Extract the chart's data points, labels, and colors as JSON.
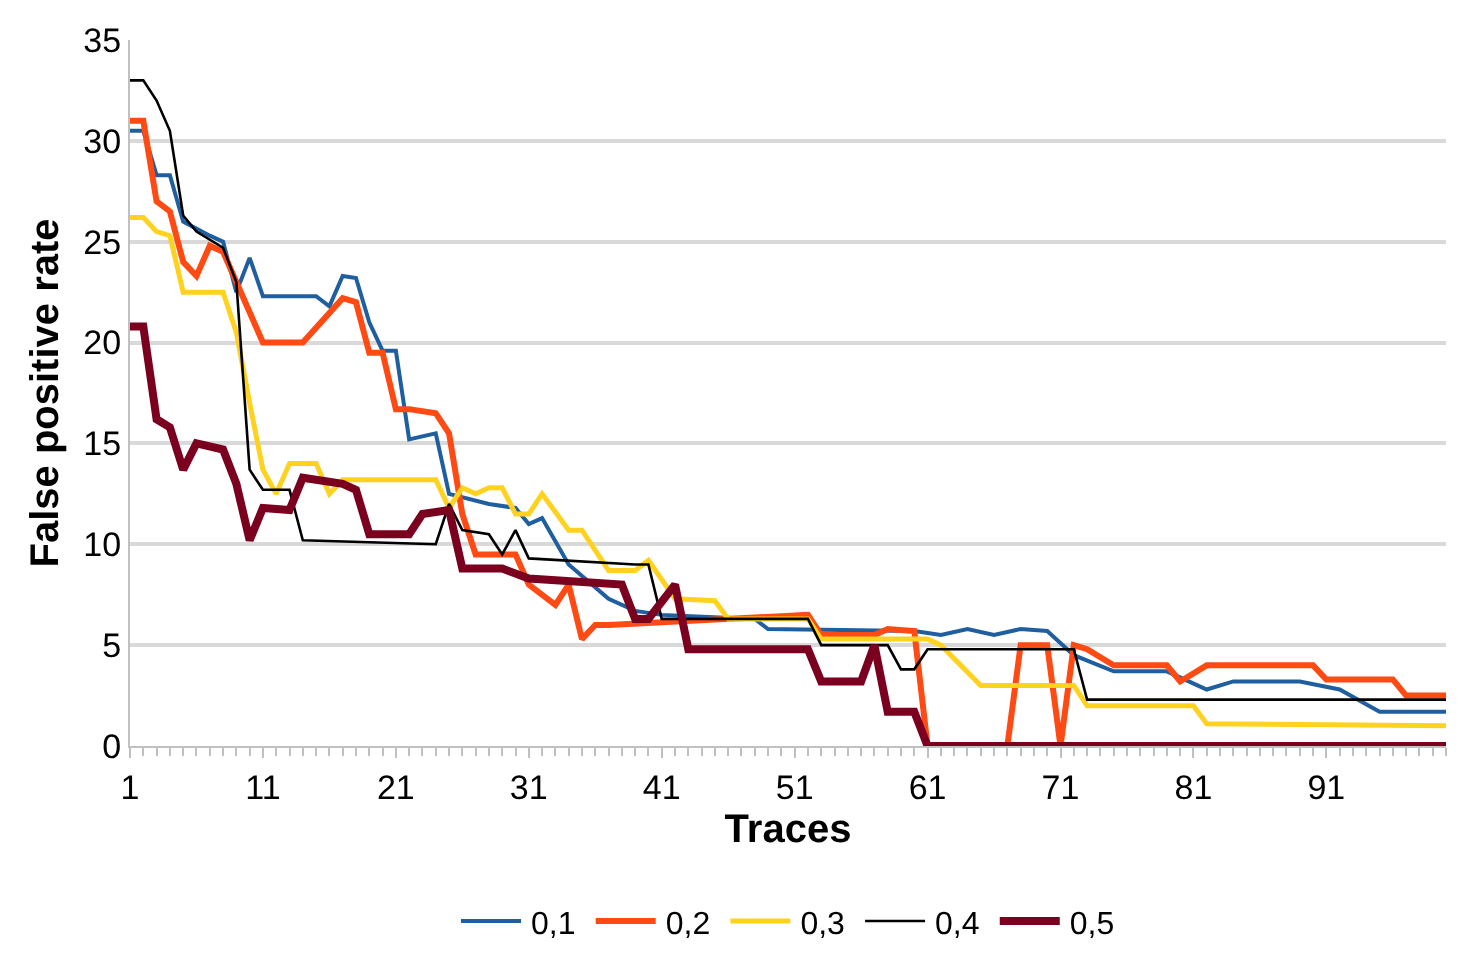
{
  "chart_data": {
    "type": "line",
    "xlabel": "Traces",
    "ylabel": "False positive rate",
    "xlim": [
      1,
      100
    ],
    "xticks": [
      1,
      11,
      21,
      31,
      41,
      51,
      61,
      71,
      81,
      91
    ],
    "ylim": [
      0,
      35
    ],
    "yticks": [
      0,
      5,
      10,
      15,
      20,
      25,
      30,
      35
    ],
    "grid": "y",
    "legend": "bottom",
    "marker": "none",
    "line_style": "solid",
    "series": [
      {
        "name": "0,1",
        "color": "#1f5fa0",
        "x": [
          1,
          2,
          3,
          4,
          5,
          7,
          8,
          9,
          10,
          11,
          15,
          16,
          17,
          18,
          19,
          20,
          21,
          22,
          24,
          25,
          28,
          30,
          31,
          32,
          34,
          37,
          39,
          41,
          48,
          49,
          60,
          62,
          64,
          66,
          68,
          70,
          72,
          75,
          79,
          82,
          84,
          89,
          92,
          95,
          100
        ],
        "values": [
          30.5,
          30.5,
          28.3,
          28.3,
          26,
          25.3,
          25,
          22.5,
          24.2,
          22.3,
          22.3,
          21.8,
          23.3,
          23.2,
          21,
          19.6,
          19.6,
          15.2,
          15.5,
          12.5,
          12,
          11.8,
          11,
          11.3,
          9,
          7.3,
          6.7,
          6.5,
          6.3,
          5.8,
          5.7,
          5.5,
          5.8,
          5.5,
          5.8,
          5.7,
          4.5,
          3.7,
          3.7,
          2.8,
          3.2,
          3.2,
          2.8,
          1.7,
          1.7
        ]
      },
      {
        "name": "0,2",
        "color": "#ff4a14",
        "x": [
          1,
          2,
          3,
          4,
          5,
          6,
          7,
          8,
          9,
          11,
          14,
          17,
          18,
          19,
          20,
          21,
          22,
          24,
          25,
          26,
          27,
          30,
          31,
          33,
          34,
          35,
          36,
          37,
          52,
          53,
          57,
          58,
          60,
          61,
          67,
          68,
          70,
          71,
          72,
          73,
          75,
          79,
          80,
          82,
          90,
          91,
          96,
          97,
          100
        ],
        "values": [
          31,
          31,
          27,
          26.5,
          24,
          23.3,
          24.8,
          24.5,
          23,
          20,
          20,
          22.2,
          22,
          19.5,
          19.5,
          16.7,
          16.7,
          16.5,
          15.5,
          11.5,
          9.5,
          9.5,
          8,
          7,
          8,
          5.3,
          6,
          6,
          6.5,
          5.5,
          5.5,
          5.8,
          5.7,
          0,
          0,
          5,
          5,
          0,
          5,
          4.8,
          4,
          4,
          3.2,
          4,
          4,
          3.3,
          3.3,
          2.5,
          2.5
        ]
      },
      {
        "name": "0,3",
        "color": "#ffd21f",
        "x": [
          1,
          2,
          3,
          4,
          5,
          8,
          9,
          10,
          11,
          12,
          13,
          15,
          16,
          17,
          24,
          25,
          26,
          27,
          28,
          29,
          30,
          31,
          32,
          34,
          35,
          37,
          39,
          40,
          42,
          45,
          46,
          52,
          53,
          61,
          62,
          65,
          72,
          73,
          81,
          82,
          100
        ],
        "values": [
          26.2,
          26.2,
          25.5,
          25.3,
          22.5,
          22.5,
          20.5,
          17,
          13.7,
          12.5,
          14,
          14,
          12.5,
          13.2,
          13.2,
          11.8,
          12.8,
          12.5,
          12.8,
          12.8,
          11.5,
          11.5,
          12.5,
          10.7,
          10.7,
          8.7,
          8.7,
          9.2,
          7.3,
          7.2,
          6.3,
          6.3,
          5.3,
          5.3,
          5,
          3,
          3,
          2,
          2,
          1.1,
          1
        ]
      },
      {
        "name": "0,4",
        "color": "#000000",
        "x": [
          1,
          2,
          3,
          4,
          5,
          6,
          8,
          9,
          10,
          11,
          13,
          14,
          24,
          25,
          26,
          28,
          29,
          30,
          31,
          39,
          40,
          41,
          52,
          53,
          58,
          59,
          60,
          61,
          72,
          73,
          100
        ],
        "values": [
          33,
          33,
          32,
          30.5,
          26.3,
          25.5,
          24.7,
          23,
          13.7,
          12.7,
          12.7,
          10.2,
          10,
          12,
          10.7,
          10.5,
          9.5,
          10.7,
          9.3,
          9,
          9,
          6.3,
          6.3,
          5,
          5,
          3.8,
          3.8,
          4.8,
          4.8,
          2.3,
          2.3
        ]
      },
      {
        "name": "0,5",
        "color": "#7b0020",
        "x": [
          1,
          2,
          3,
          4,
          5,
          6,
          8,
          9,
          10,
          11,
          13,
          14,
          17,
          18,
          19,
          22,
          23,
          25,
          26,
          29,
          31,
          38,
          39,
          40,
          42,
          43,
          52,
          53,
          56,
          57,
          58,
          60,
          61,
          100
        ],
        "values": [
          20.8,
          20.8,
          16.2,
          15.8,
          13.7,
          15,
          14.7,
          13,
          10.2,
          11.8,
          11.7,
          13.3,
          13,
          12.7,
          10.5,
          10.5,
          11.5,
          11.7,
          8.8,
          8.8,
          8.3,
          8,
          6.3,
          6.3,
          8,
          4.8,
          4.8,
          3.2,
          3.2,
          5,
          1.7,
          1.7,
          0,
          0
        ]
      }
    ]
  }
}
